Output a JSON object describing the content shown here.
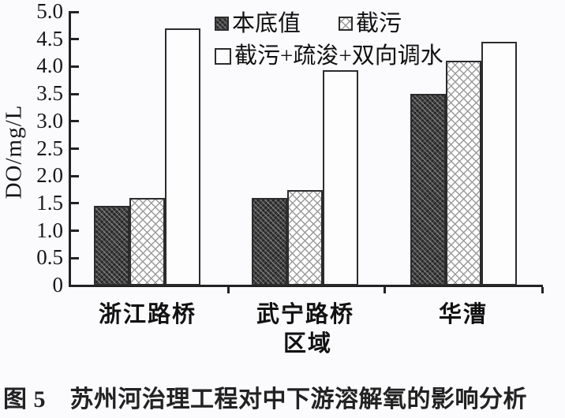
{
  "chart_data": {
    "type": "bar",
    "title": "",
    "xlabel": "区域",
    "ylabel": "DO/mg/L",
    "ylim": [
      0,
      5.0
    ],
    "ytick_step": 0.5,
    "ytick_labels": [
      "5.0",
      "4.5",
      "4.0",
      "3.5",
      "3.0",
      "2.5",
      "2.0",
      "1.5",
      "1.0",
      "0.5",
      "0"
    ],
    "grid": false,
    "legend_position": "top-inside",
    "categories": [
      "浙江路桥",
      "武宁路桥",
      "华漕"
    ],
    "series": [
      {
        "name": "本底值",
        "pattern": "dark-hatch",
        "values": [
          1.45,
          1.6,
          3.5
        ]
      },
      {
        "name": "截污",
        "pattern": "dot-lattice",
        "values": [
          1.6,
          1.75,
          4.1
        ]
      },
      {
        "name": "截污+疏浚+双向调水",
        "pattern": "plain-white",
        "values": [
          4.7,
          3.93,
          4.45
        ]
      }
    ]
  },
  "caption": "图 5　苏州河治理工程对中下游溶解氧的影响分析",
  "colors": {
    "axis": "#222222",
    "text": "#111111",
    "bar_border": "#2c2c2c",
    "dark_bar_fill": "#3f3f3f",
    "lattice_line": "#9b9b9b",
    "background": "#fbfbfd"
  },
  "icons": {
    "legend_swatch_dark": "dark-hatch-square",
    "legend_swatch_dot": "dot-lattice-square",
    "legend_swatch_white": "white-square"
  }
}
